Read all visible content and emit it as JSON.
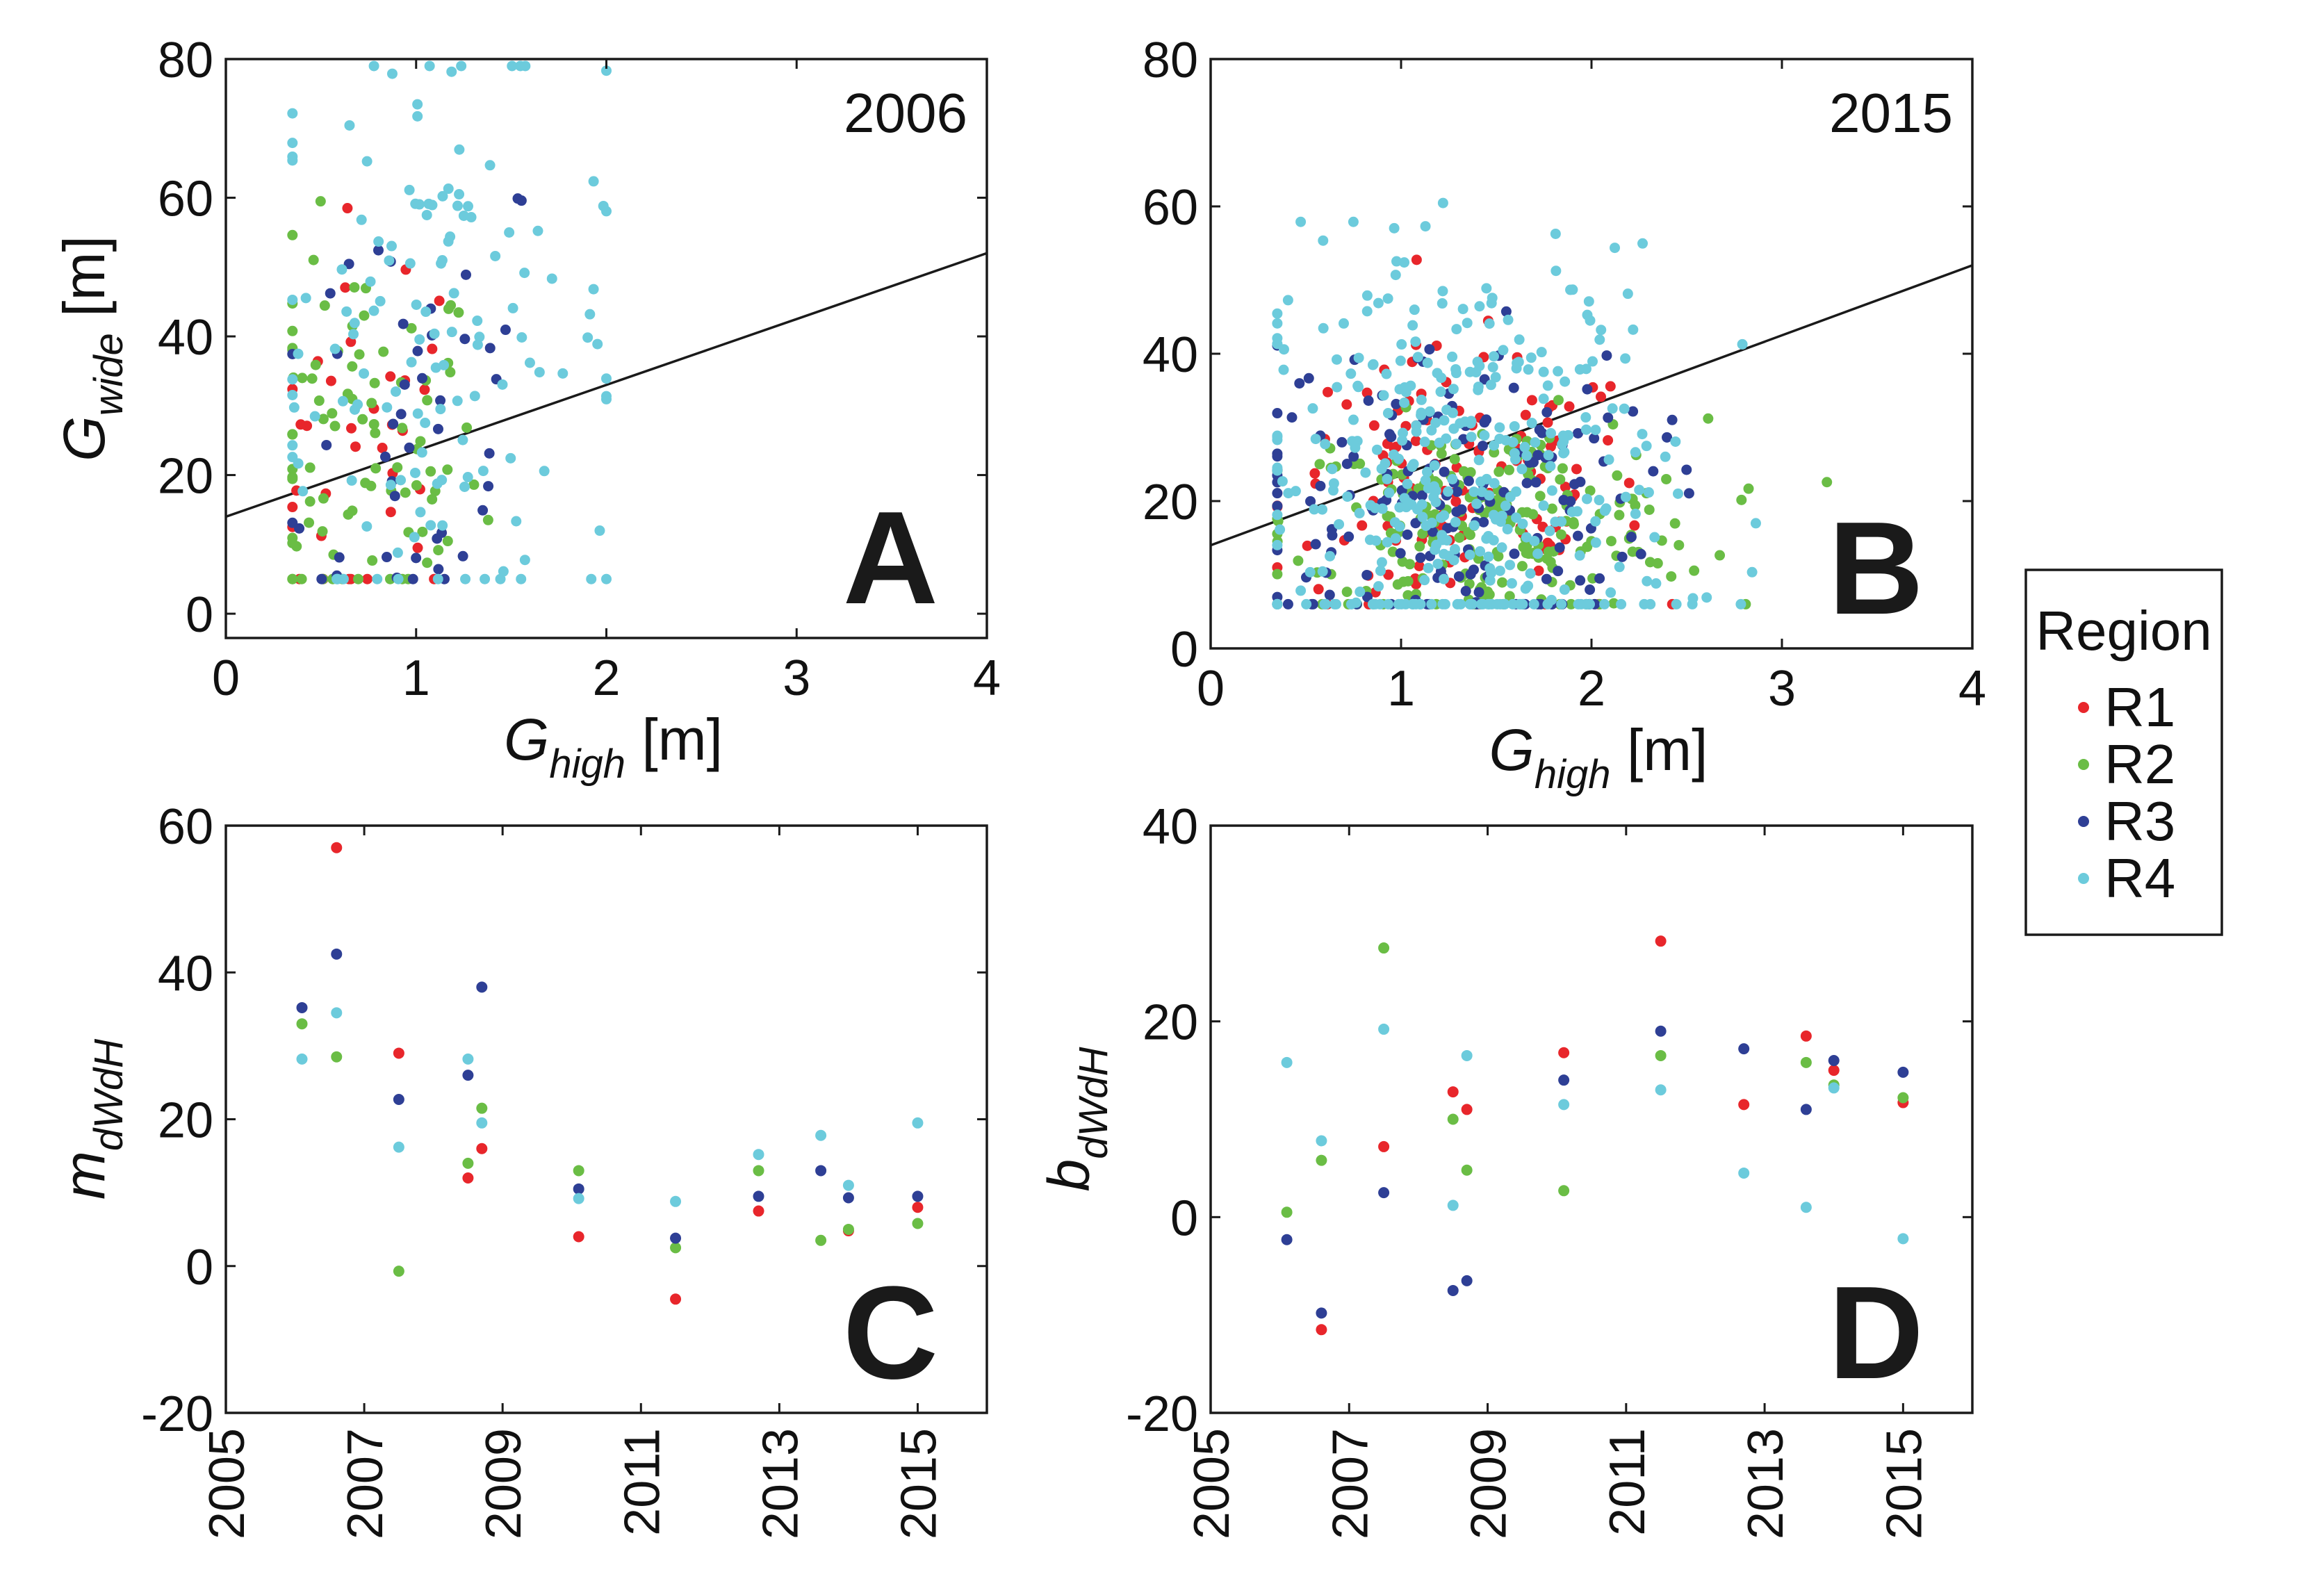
{
  "colors": {
    "R1": "#e8262b",
    "R2": "#6abd45",
    "R3": "#2e3f95",
    "R4": "#6ccbdc",
    "axis": "#1a1a1a"
  },
  "legend": {
    "title": "Region",
    "items": [
      "R1",
      "R2",
      "R3",
      "R4"
    ]
  },
  "chart_data": [
    {
      "id": "A",
      "type": "scatter",
      "panel_letter": "A",
      "year_label": "2006",
      "xlabel_main": "G",
      "xlabel_sub": "high",
      "xlabel_unit": "[m]",
      "ylabel_main": "G",
      "ylabel_sub": "wide",
      "ylabel_unit": "[m]",
      "xlim": [
        0,
        4
      ],
      "ylim": [
        -3.5,
        80
      ],
      "xticks": [
        0,
        1,
        2,
        3,
        4
      ],
      "yticks": [
        0,
        20,
        40,
        60,
        80
      ],
      "fit_line": {
        "slope": 9.5,
        "intercept": 14
      },
      "clusters": [
        {
          "region": "R1",
          "n": 35,
          "cx": 0.75,
          "cy": 22,
          "sx": 0.3,
          "sy": 18
        },
        {
          "region": "R2",
          "n": 90,
          "cx": 0.7,
          "cy": 22,
          "sx": 0.32,
          "sy": 15
        },
        {
          "region": "R3",
          "n": 45,
          "cx": 0.95,
          "cy": 30,
          "sx": 0.4,
          "sy": 20
        },
        {
          "region": "R4",
          "n": 140,
          "cx": 1.1,
          "cy": 40,
          "sx": 0.5,
          "sy": 22
        }
      ]
    },
    {
      "id": "B",
      "type": "scatter",
      "panel_letter": "B",
      "year_label": "2015",
      "xlabel_main": "G",
      "xlabel_sub": "high",
      "xlabel_unit": "[m]",
      "ylabel_main": "",
      "ylabel_sub": "",
      "ylabel_unit": "",
      "xlim": [
        0,
        4
      ],
      "ylim": [
        0,
        80
      ],
      "xticks": [
        0,
        1,
        2,
        3,
        4
      ],
      "yticks": [
        0,
        20,
        40,
        60,
        80
      ],
      "fit_line": {
        "slope": 9.5,
        "intercept": 14
      },
      "clusters": [
        {
          "region": "R1",
          "n": 130,
          "cx": 1.3,
          "cy": 20,
          "sx": 0.5,
          "sy": 10
        },
        {
          "region": "R2",
          "n": 220,
          "cx": 1.5,
          "cy": 17,
          "sx": 0.55,
          "sy": 7
        },
        {
          "region": "R3",
          "n": 170,
          "cx": 1.2,
          "cy": 20,
          "sx": 0.55,
          "sy": 11
        },
        {
          "region": "R4",
          "n": 380,
          "cx": 1.35,
          "cy": 22,
          "sx": 0.55,
          "sy": 16
        }
      ]
    },
    {
      "id": "C",
      "type": "scatter",
      "panel_letter": "C",
      "ylabel_main": "m",
      "ylabel_sub": "dWdH",
      "xlim": [
        2005,
        2016
      ],
      "ylim": [
        -20,
        60
      ],
      "xticks": [
        2005,
        2007,
        2009,
        2011,
        2013,
        2015
      ],
      "yticks": [
        -20,
        0,
        20,
        40,
        60
      ],
      "series": [
        {
          "name": "R1",
          "points": [
            [
              2006.6,
              57
            ],
            [
              2007.5,
              29
            ],
            [
              2008.5,
              12
            ],
            [
              2008.7,
              16
            ],
            [
              2010.1,
              4
            ],
            [
              2011.5,
              -4.5
            ],
            [
              2012.7,
              7.5
            ],
            [
              2014.0,
              4.8
            ],
            [
              2015.0,
              8
            ]
          ]
        },
        {
          "name": "R2",
          "points": [
            [
              2006.1,
              33
            ],
            [
              2006.6,
              28.5
            ],
            [
              2007.5,
              -0.7
            ],
            [
              2008.5,
              14
            ],
            [
              2008.7,
              21.5
            ],
            [
              2010.1,
              13
            ],
            [
              2011.5,
              2.5
            ],
            [
              2012.7,
              13
            ],
            [
              2013.6,
              3.5
            ],
            [
              2014.0,
              5
            ],
            [
              2015.0,
              5.8
            ]
          ]
        },
        {
          "name": "R3",
          "points": [
            [
              2006.1,
              35.2
            ],
            [
              2006.6,
              42.5
            ],
            [
              2007.5,
              22.7
            ],
            [
              2008.5,
              26
            ],
            [
              2008.7,
              38
            ],
            [
              2010.1,
              10.5
            ],
            [
              2011.5,
              3.8
            ],
            [
              2012.7,
              9.5
            ],
            [
              2013.6,
              13
            ],
            [
              2014.0,
              9.3
            ],
            [
              2015.0,
              9.5
            ]
          ]
        },
        {
          "name": "R4",
          "points": [
            [
              2006.1,
              28.2
            ],
            [
              2006.6,
              34.5
            ],
            [
              2007.5,
              16.2
            ],
            [
              2008.5,
              28.2
            ],
            [
              2008.7,
              19.5
            ],
            [
              2010.1,
              9.2
            ],
            [
              2011.5,
              8.8
            ],
            [
              2012.7,
              15.2
            ],
            [
              2013.6,
              17.8
            ],
            [
              2014.0,
              11
            ],
            [
              2015.0,
              19.5
            ]
          ]
        }
      ]
    },
    {
      "id": "D",
      "type": "scatter",
      "panel_letter": "D",
      "ylabel_main": "b",
      "ylabel_sub": "dWdH",
      "xlim": [
        2005,
        2016
      ],
      "ylim": [
        -20,
        40
      ],
      "xticks": [
        2005,
        2007,
        2009,
        2011,
        2013,
        2015
      ],
      "yticks": [
        -20,
        0,
        20,
        40
      ],
      "series": [
        {
          "name": "R1",
          "points": [
            [
              2006.6,
              -11.5
            ],
            [
              2007.5,
              7.2
            ],
            [
              2008.5,
              12.8
            ],
            [
              2008.7,
              11
            ],
            [
              2010.1,
              16.8
            ],
            [
              2011.5,
              28.2
            ],
            [
              2012.7,
              11.5
            ],
            [
              2013.6,
              18.5
            ],
            [
              2014.0,
              15
            ],
            [
              2015.0,
              11.7
            ]
          ]
        },
        {
          "name": "R2",
          "points": [
            [
              2006.1,
              0.5
            ],
            [
              2006.6,
              5.8
            ],
            [
              2007.5,
              27.5
            ],
            [
              2008.5,
              10
            ],
            [
              2008.7,
              4.8
            ],
            [
              2010.1,
              2.7
            ],
            [
              2011.5,
              16.5
            ],
            [
              2013.6,
              15.8
            ],
            [
              2014.0,
              13.5
            ],
            [
              2015.0,
              12.2
            ]
          ]
        },
        {
          "name": "R3",
          "points": [
            [
              2006.1,
              -2.3
            ],
            [
              2006.6,
              -9.8
            ],
            [
              2007.5,
              2.5
            ],
            [
              2008.5,
              -7.5
            ],
            [
              2008.7,
              -6.5
            ],
            [
              2010.1,
              14
            ],
            [
              2011.5,
              19
            ],
            [
              2012.7,
              17.2
            ],
            [
              2013.6,
              11
            ],
            [
              2014.0,
              16
            ],
            [
              2015.0,
              14.8
            ]
          ]
        },
        {
          "name": "R4",
          "points": [
            [
              2006.1,
              15.8
            ],
            [
              2006.6,
              7.8
            ],
            [
              2007.5,
              19.2
            ],
            [
              2008.5,
              1.2
            ],
            [
              2008.7,
              16.5
            ],
            [
              2010.1,
              11.5
            ],
            [
              2011.5,
              13
            ],
            [
              2012.7,
              4.5
            ],
            [
              2013.6,
              1
            ],
            [
              2014.0,
              13.2
            ],
            [
              2015.0,
              -2.2
            ]
          ]
        }
      ]
    }
  ]
}
